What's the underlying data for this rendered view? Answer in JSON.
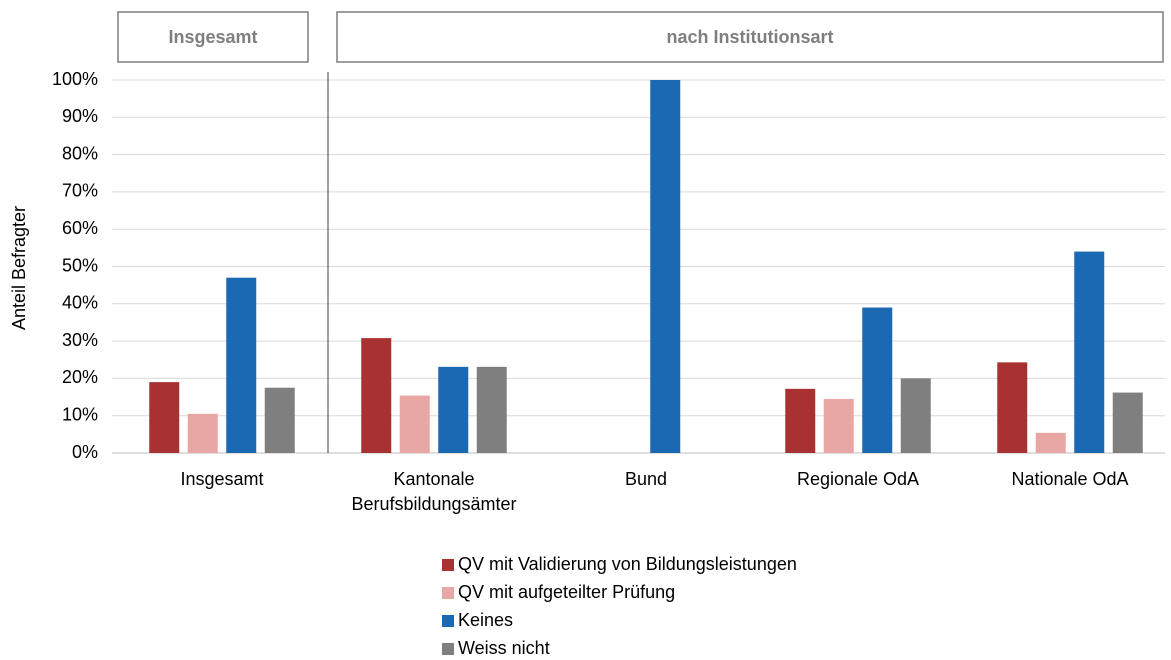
{
  "chart_data": {
    "type": "bar",
    "panel_labels": [
      "Insgesamt",
      "nach Institutionsart"
    ],
    "y_label": "Anteil Befragter",
    "categories": [
      "Insgesamt",
      "Kantonale\nBerufsbildungsämter",
      "Bund",
      "Regionale OdA",
      "Nationale OdA"
    ],
    "series": [
      {
        "name": "QV mit Validierung von Bildungsleistungen",
        "color": "#a83232",
        "values": [
          19,
          30.8,
          0,
          17.2,
          24.3
        ]
      },
      {
        "name": "QV mit aufgeteilter Prüfung",
        "color": "#e8a6a4",
        "values": [
          10.5,
          15.4,
          0,
          14.5,
          5.4
        ]
      },
      {
        "name": "Keines",
        "color": "#1a69b2",
        "values": [
          47,
          23.1,
          100,
          39,
          54
        ]
      },
      {
        "name": "Weiss nicht",
        "color": "#7f7f7f",
        "values": [
          17.5,
          23.1,
          0,
          20,
          16.2
        ]
      }
    ],
    "ylim": [
      0,
      100
    ],
    "yticks": [
      {
        "value": 0,
        "label": "0%"
      },
      {
        "value": 10,
        "label": "10%"
      },
      {
        "value": 20,
        "label": "20%"
      },
      {
        "value": 30,
        "label": "30%"
      },
      {
        "value": 40,
        "label": "40%"
      },
      {
        "value": 50,
        "label": "50%"
      },
      {
        "value": 60,
        "label": "60%"
      },
      {
        "value": 70,
        "label": "70%"
      },
      {
        "value": 80,
        "label": "80%"
      },
      {
        "value": 90,
        "label": "90%"
      },
      {
        "value": 100,
        "label": "100%"
      }
    ],
    "grid": true,
    "legend": "bottom"
  }
}
